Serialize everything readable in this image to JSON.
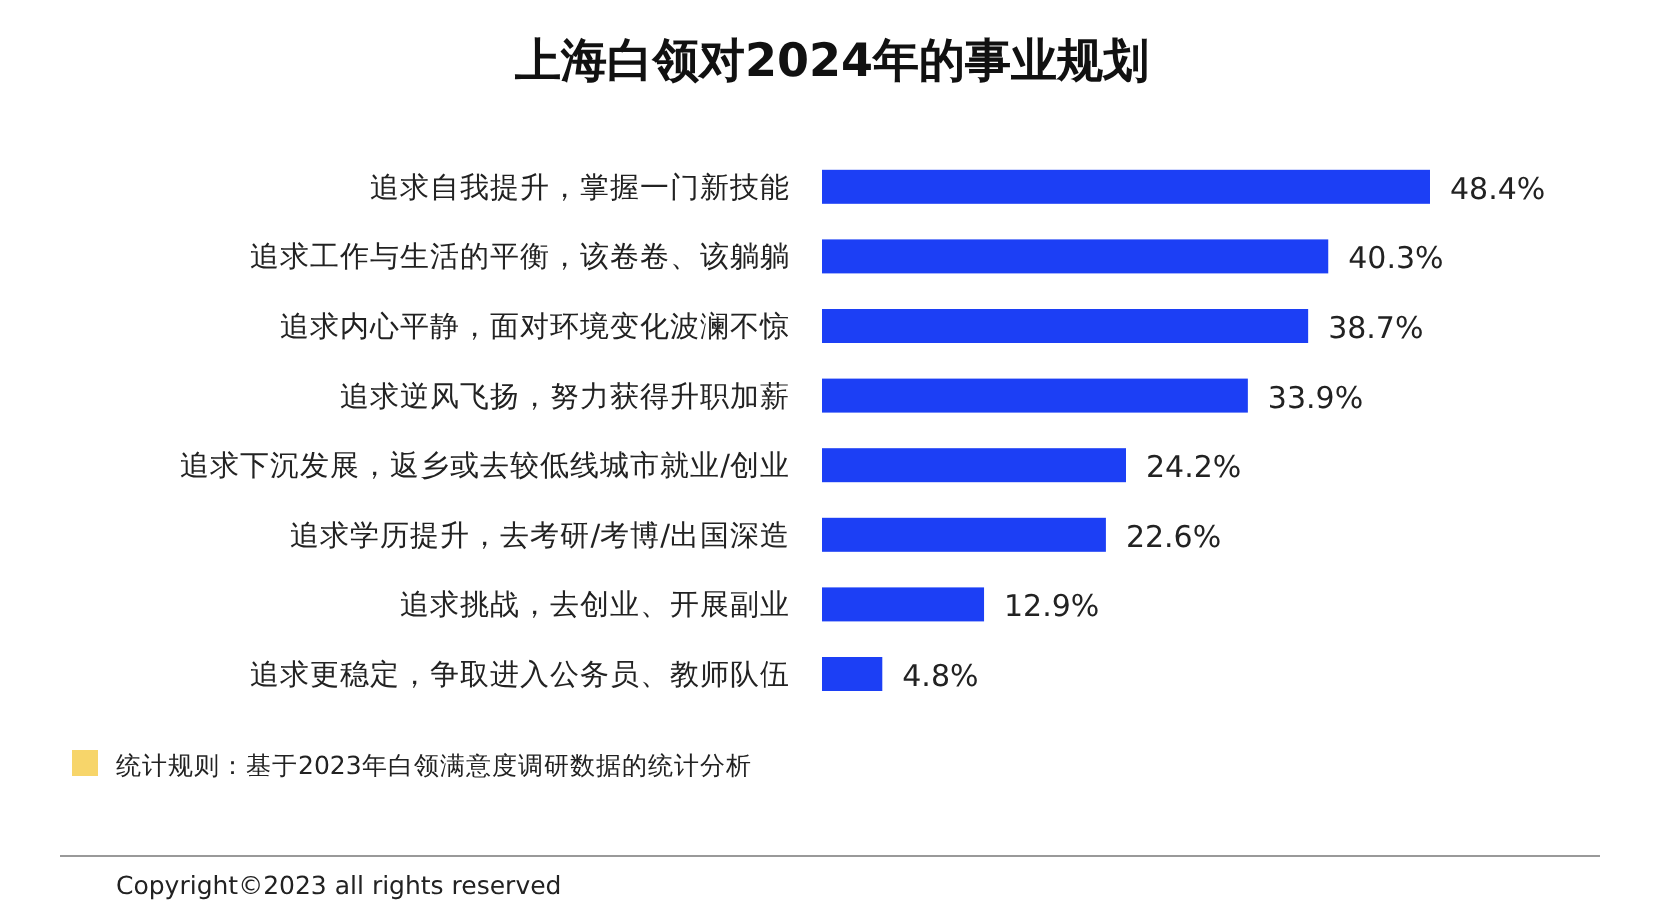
{
  "chart_data": {
    "type": "bar",
    "orientation": "horizontal",
    "title": "上海白领对2024年的事业规划",
    "categories": [
      "追求自我提升，掌握一门新技能",
      "追求工作与生活的平衡，该卷卷、该躺躺",
      "追求内心平静，面对环境变化波澜不惊",
      "追求逆风飞扬，努力获得升职加薪",
      "追求下沉发展，返乡或去较低线城市就业/创业",
      "追求学历提升，去考研/考博/出国深造",
      "追求挑战，去创业、开展副业",
      "追求更稳定，争取进入公务员、教师队伍"
    ],
    "values": [
      48.4,
      40.3,
      38.7,
      33.9,
      24.2,
      22.6,
      12.9,
      4.8
    ],
    "value_labels": [
      "48.4%",
      "40.3%",
      "38.7%",
      "33.9%",
      "24.2%",
      "22.6%",
      "12.9%",
      "4.8%"
    ],
    "color": "#1c3ff5",
    "annotations": [
      "统计规则：基于2023年白领满意度调研数据的统计分析",
      "Copyright©2023 all rights reserved"
    ]
  }
}
